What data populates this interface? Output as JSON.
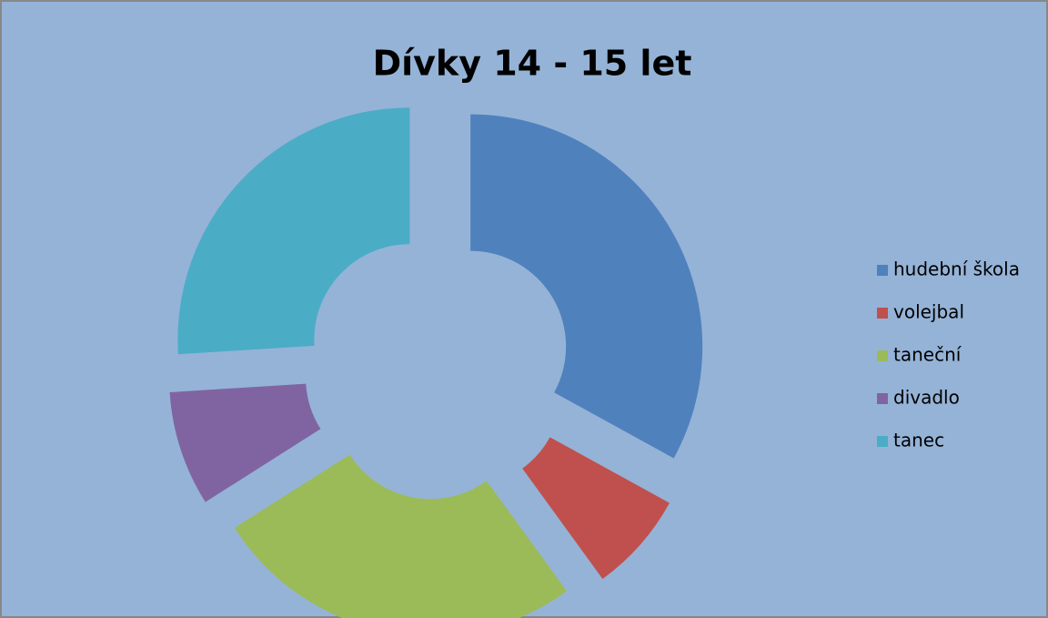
{
  "chart_data": {
    "type": "donut",
    "title": "Dívky 14 - 15 let",
    "categories": [
      "hudební škola",
      "volejbal",
      "taneční",
      "divadlo",
      "tanec"
    ],
    "values": [
      33,
      7,
      26,
      8,
      26
    ],
    "colors": [
      "#4f81bd",
      "#c0504d",
      "#9bbb59",
      "#8064a2",
      "#4bacc6"
    ],
    "legend": "right"
  }
}
